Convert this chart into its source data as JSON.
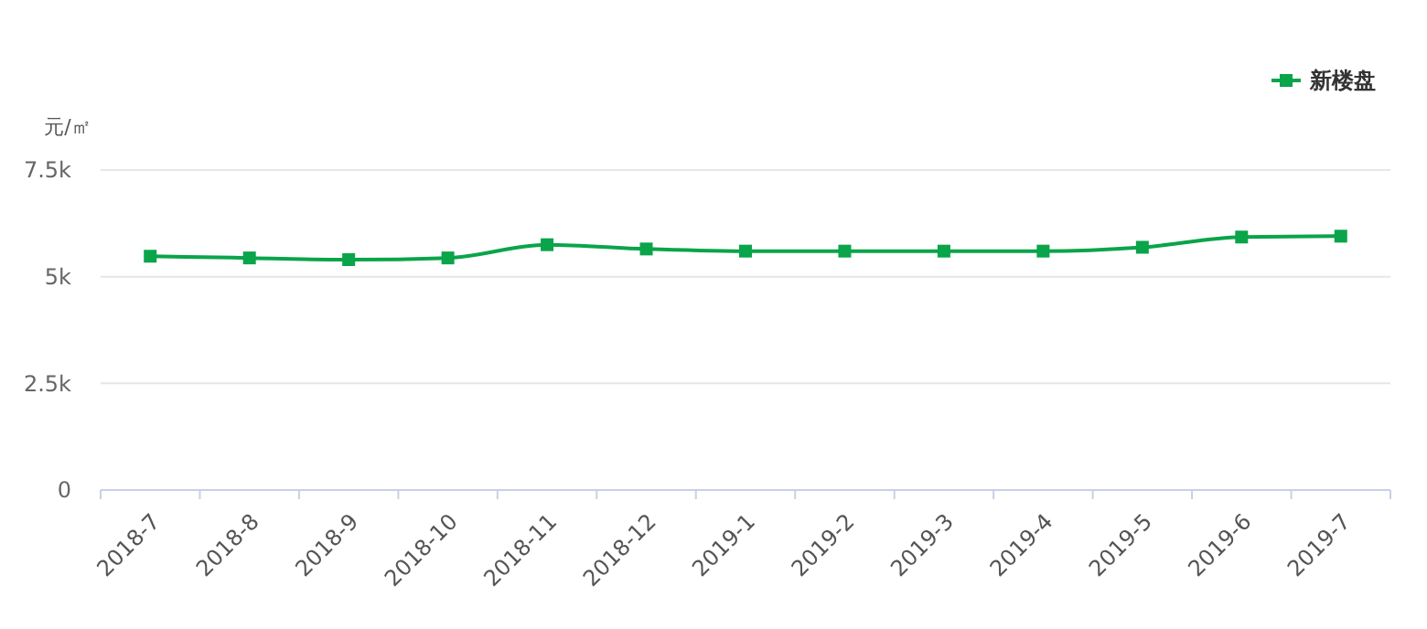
{
  "chart_data": {
    "type": "line",
    "ylabel": "元/㎡",
    "categories": [
      "2018-7",
      "2018-8",
      "2018-9",
      "2018-10",
      "2018-11",
      "2018-12",
      "2019-1",
      "2019-2",
      "2019-3",
      "2019-4",
      "2019-5",
      "2019-6",
      "2019-7"
    ],
    "series": [
      {
        "name": "新楼盘",
        "color": "#0aa44a",
        "values": [
          5480,
          5440,
          5400,
          5440,
          5750,
          5650,
          5600,
          5600,
          5600,
          5600,
          5690,
          5930,
          5950
        ]
      }
    ],
    "ylim": [
      0,
      7500
    ],
    "yticks": [
      0,
      {
        "value": 2500,
        "label": "2.5k"
      },
      {
        "value": 5000,
        "label": "5k"
      },
      {
        "value": 7500,
        "label": "7.5k"
      }
    ],
    "grid": "y",
    "legend": "top right",
    "marker": "square"
  }
}
